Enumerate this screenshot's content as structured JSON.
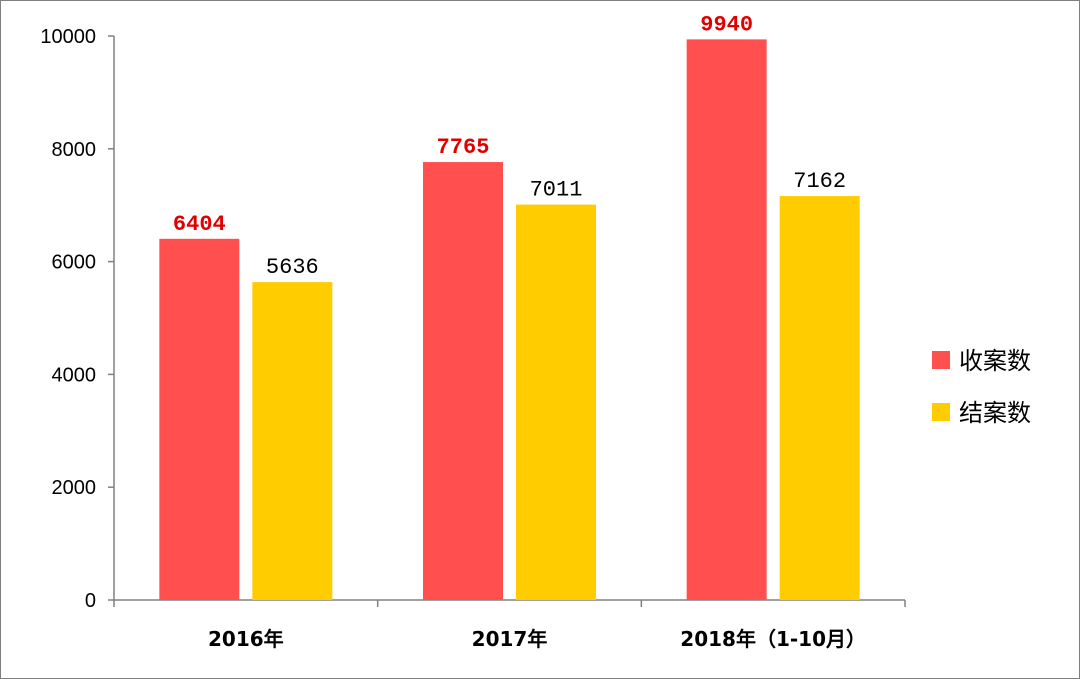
{
  "chart_data": {
    "type": "bar",
    "categories": [
      "2016年",
      "2017年",
      "2018年（1-10月）"
    ],
    "series": [
      {
        "name": "收案数",
        "values": [
          6404,
          7765,
          9940
        ],
        "color": "#ff4f4f",
        "label_color": "#e00000"
      },
      {
        "name": "结案数",
        "values": [
          5636,
          7011,
          7162
        ],
        "color": "#ffcc00",
        "label_color": "#000000"
      }
    ],
    "title": "",
    "xlabel": "",
    "ylabel": "",
    "ylim": [
      0,
      10000
    ],
    "yticks": [
      0,
      2000,
      4000,
      6000,
      8000,
      10000
    ],
    "grid": false,
    "legend": "right"
  }
}
